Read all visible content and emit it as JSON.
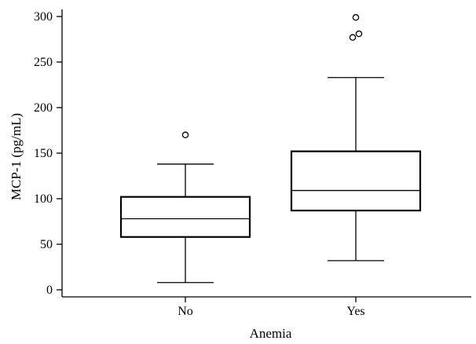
{
  "chart_data": {
    "type": "boxplot",
    "title": "",
    "xlabel": "Anemia",
    "ylabel": "MCP-1 (pg/mL)",
    "ylim": [
      -8,
      308
    ],
    "yticks": [
      0,
      50,
      100,
      150,
      200,
      250,
      300
    ],
    "grid": false,
    "categories": [
      "No",
      "Yes"
    ],
    "boxes": [
      {
        "category": "No",
        "whisker_low": 8,
        "q1": 58,
        "median": 78,
        "q3": 102,
        "whisker_high": 138,
        "outliers": [
          170
        ]
      },
      {
        "category": "Yes",
        "whisker_low": 32,
        "q1": 87,
        "median": 109,
        "q3": 152,
        "whisker_high": 233,
        "outliers": [
          277,
          281,
          299
        ]
      }
    ]
  }
}
